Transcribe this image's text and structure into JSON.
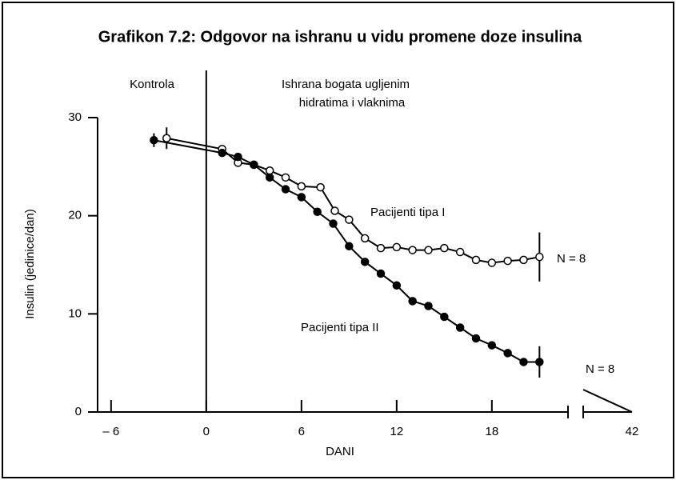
{
  "chart_data": {
    "type": "line",
    "title": "Grafikon 7.2: Odgovor na ishranu u vidu promene doze insulina",
    "xlabel": "DANI",
    "ylabel": "Insulin (jedinice/dan)",
    "annotations": [
      "Kontrola",
      "Ishrana bogata ugljenim",
      "hidratima i vlaknima",
      "Pacijenti tipa I",
      "Pacijenti tipa II",
      "N = 8",
      "N = 8"
    ],
    "xlim": [
      -7,
      42
    ],
    "axis_break": [
      23,
      41
    ],
    "ylim": [
      0,
      30
    ],
    "xticks": [
      {
        "value": -6,
        "label": "– 6"
      },
      0,
      6,
      12,
      18,
      42
    ],
    "yticks": [
      0,
      10,
      20,
      30
    ],
    "divider_x": 0,
    "series": [
      {
        "name": "Pacijenti tipa I",
        "color": "#000000",
        "marker": "open",
        "x": [
          -2.5,
          1,
          2,
          3,
          4,
          5,
          6,
          7.2,
          8.1,
          9,
          10,
          11,
          12,
          13,
          14,
          15,
          16,
          17,
          18,
          19,
          20,
          21
        ],
        "values": [
          27.9,
          26.8,
          25.4,
          25.2,
          24.6,
          23.9,
          23,
          22.9,
          20.5,
          19.6,
          17.7,
          16.7,
          16.8,
          16.5,
          16.5,
          16.7,
          16.3,
          15.5,
          15.2,
          15.4,
          15.5,
          15.8
        ],
        "error_bars": [
          {
            "index": 0,
            "error": 1.1
          },
          {
            "index": 21,
            "error": 2.5
          }
        ]
      },
      {
        "name": "Pacijenti tipa II",
        "color": "#000000",
        "marker": "filled",
        "x": [
          -3.3,
          1,
          2,
          3,
          4,
          5,
          6,
          7,
          8,
          9,
          10,
          11,
          12,
          13,
          14,
          15,
          16,
          17,
          18,
          19,
          20,
          21
        ],
        "values": [
          27.7,
          26.4,
          26,
          25.2,
          23.9,
          22.7,
          21.9,
          20.4,
          19.2,
          16.9,
          15.3,
          14.1,
          12.9,
          11.3,
          10.8,
          9.7,
          8.6,
          7.5,
          6.8,
          6,
          5.1,
          5.1
        ],
        "error_bars": [
          {
            "index": 0,
            "error": 0.7
          },
          {
            "index": 21,
            "error": 1.6
          }
        ]
      }
    ]
  }
}
